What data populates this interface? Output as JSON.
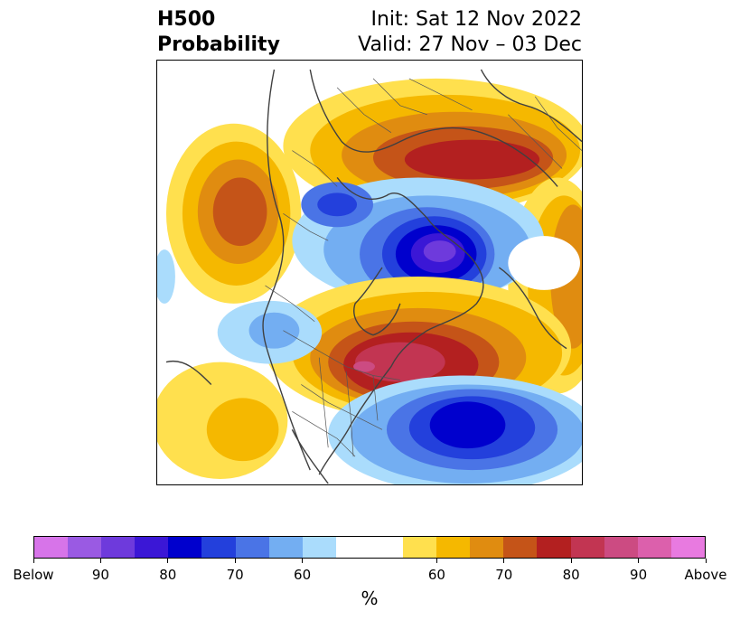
{
  "header": {
    "title_line1": "H500",
    "title_line2": "Probability",
    "init_text": "Init: Sat 12 Nov 2022",
    "valid_text": "Valid: 27 Nov – 03 Dec"
  },
  "map": {
    "projection": "polar stereographic, North America / Arctic",
    "regions": [
      {
        "name": "north-pacific-above",
        "category": "above",
        "level": 70
      },
      {
        "name": "siberia-arctic-above",
        "category": "above",
        "level": 80
      },
      {
        "name": "canadian-arctic-below",
        "category": "below",
        "level": 90
      },
      {
        "name": "greenland-beaufort-below",
        "category": "below",
        "level": 60
      },
      {
        "name": "eastern-north-america-above",
        "category": "above",
        "level": 85
      },
      {
        "name": "north-atlantic-below",
        "category": "below",
        "level": 80
      },
      {
        "name": "eastern-pacific-below",
        "category": "below",
        "level": 65
      },
      {
        "name": "subtropical-pacific-above",
        "category": "above",
        "level": 65
      }
    ]
  },
  "colorbar": {
    "colors": [
      "#d774e9",
      "#9a5ae3",
      "#6e3adc",
      "#3b17d6",
      "#0000cd",
      "#2340dc",
      "#4a74e6",
      "#73aef2",
      "#aadcfc",
      "#ffffff",
      "#ffffff",
      "#ffe04e",
      "#f5b800",
      "#e08c10",
      "#c55418",
      "#b32020",
      "#c23552",
      "#cc4b82",
      "#dc60ac",
      "#e87ae0"
    ],
    "tick_labels": [
      "Below",
      "90",
      "80",
      "70",
      "60",
      "60",
      "70",
      "80",
      "90",
      "Above"
    ],
    "unit": "%"
  }
}
